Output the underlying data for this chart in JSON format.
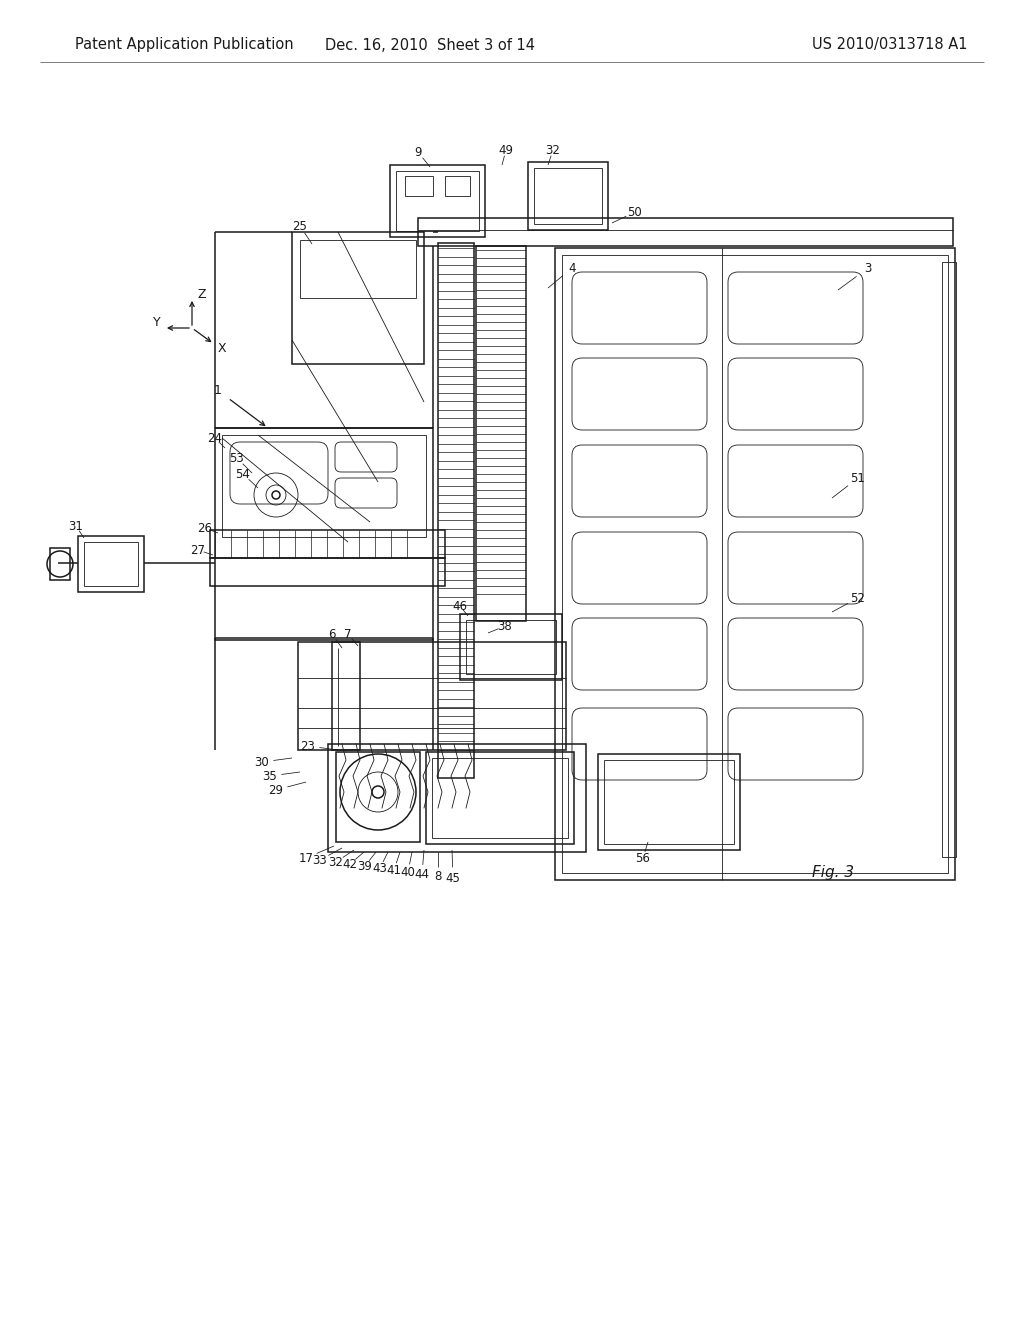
{
  "background_color": "#ffffff",
  "header_left": "Patent Application Publication",
  "header_center": "Dec. 16, 2010  Sheet 3 of 14",
  "header_right": "US 2010/0313718 A1",
  "figure_label": "Fig. 3",
  "line_color": "#1a1a1a",
  "line_width": 1.1,
  "thin_lw": 0.6,
  "header_fontsize": 10.5,
  "label_fontsize": 9,
  "fig_label_fontsize": 11
}
